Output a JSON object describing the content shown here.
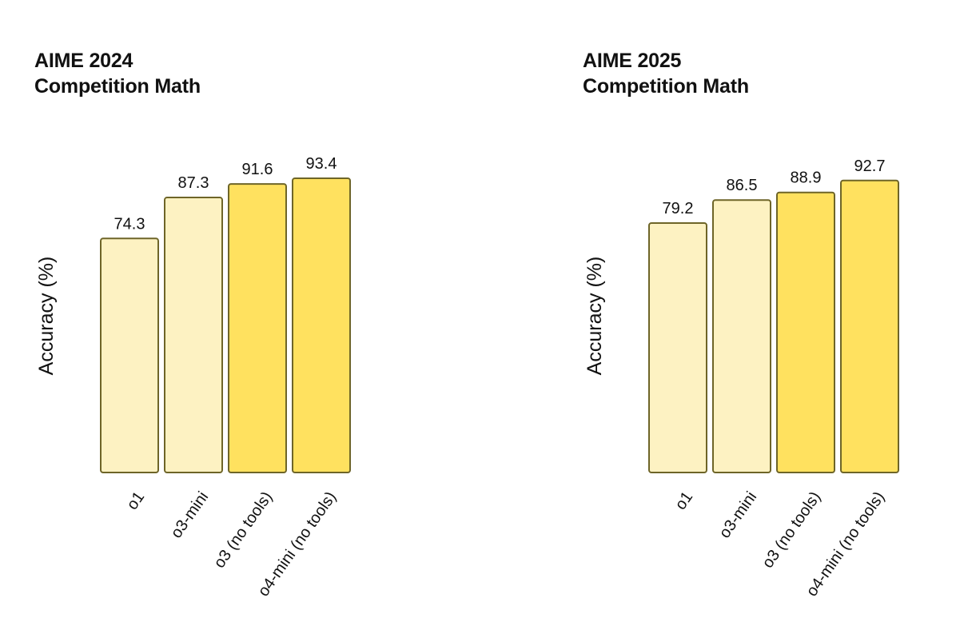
{
  "colors": {
    "o1": "#fdf2c2",
    "o3-mini": "#fdf2c2",
    "o3 (no tools)": "#ffe15f",
    "o4-mini (no tools)": "#ffe15f",
    "bar_stroke": "#6e6528",
    "text": "#111111"
  },
  "chart_data": [
    {
      "type": "bar",
      "title": [
        "AIME 2024",
        "Competition Math"
      ],
      "xlabel": "",
      "ylabel": "Accuracy (%)",
      "categories": [
        "o1",
        "o3-mini",
        "o3 (no tools)",
        "o4-mini (no tools)"
      ],
      "values": [
        74.3,
        87.3,
        91.6,
        93.4
      ],
      "value_labels": [
        "74.3",
        "87.3",
        "91.6",
        "93.4"
      ],
      "grid": false
    },
    {
      "type": "bar",
      "title": [
        "AIME 2025",
        "Competition Math"
      ],
      "xlabel": "",
      "ylabel": "Accuracy (%)",
      "categories": [
        "o1",
        "o3-mini",
        "o3 (no tools)",
        "o4-mini (no tools)"
      ],
      "values": [
        79.2,
        86.5,
        88.9,
        92.7
      ],
      "value_labels": [
        "79.2",
        "86.5",
        "88.9",
        "92.7"
      ],
      "grid": false
    }
  ]
}
